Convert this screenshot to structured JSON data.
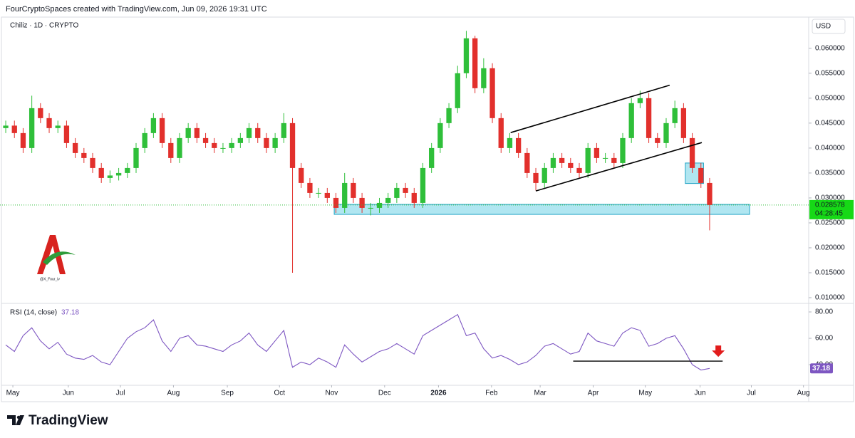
{
  "header": "FourCryptoSpaces created with TradingView.com, Jun 09, 2026 19:31 UTC",
  "footer_brand": "TradingView",
  "watermark": "@X_Four_iv",
  "chart_data": {
    "type": "candlestick",
    "title": "Chiliz · 1D · CRYPTO",
    "currency": "USD",
    "colors": {
      "up": "#2fbf3a",
      "down": "#e2302c"
    },
    "x": [
      0,
      1,
      2,
      3,
      4,
      5,
      6,
      7,
      8,
      9,
      10,
      11,
      12,
      13,
      14,
      15,
      16,
      17,
      18,
      19,
      20,
      21,
      22,
      23,
      24,
      25,
      26,
      27,
      28,
      29,
      30,
      31,
      32,
      33,
      34,
      35,
      36,
      37,
      38,
      39,
      40,
      41,
      42,
      43,
      44,
      45,
      46,
      47,
      48,
      49,
      50,
      51,
      52,
      53,
      54,
      55,
      56,
      57,
      58,
      59,
      60,
      61,
      62,
      63,
      64,
      65,
      66,
      67,
      68,
      69,
      70,
      71,
      72,
      73,
      74,
      75,
      76,
      77,
      78,
      79,
      80,
      81
    ],
    "open": [
      0.044,
      0.0445,
      0.043,
      0.04,
      0.048,
      0.046,
      0.044,
      0.0445,
      0.041,
      0.039,
      0.038,
      0.036,
      0.034,
      0.0345,
      0.035,
      0.036,
      0.04,
      0.043,
      0.046,
      0.041,
      0.038,
      0.042,
      0.044,
      0.042,
      0.041,
      0.04,
      0.04,
      0.041,
      0.042,
      0.044,
      0.042,
      0.04,
      0.042,
      0.045,
      0.036,
      0.033,
      0.031,
      0.031,
      0.03,
      0.028,
      0.033,
      0.03,
      0.028,
      0.028,
      0.029,
      0.03,
      0.032,
      0.031,
      0.029,
      0.036,
      0.04,
      0.045,
      0.048,
      0.055,
      0.062,
      0.052,
      0.056,
      0.046,
      0.04,
      0.042,
      0.039,
      0.035,
      0.033,
      0.036,
      0.038,
      0.037,
      0.036,
      0.035,
      0.04,
      0.038,
      0.038,
      0.037,
      0.042,
      0.049,
      0.05,
      0.042,
      0.041,
      0.045,
      0.048,
      0.042,
      0.036,
      0.033
    ],
    "high": [
      0.0455,
      0.0455,
      0.044,
      0.0505,
      0.049,
      0.047,
      0.0455,
      0.0455,
      0.042,
      0.04,
      0.039,
      0.037,
      0.0355,
      0.036,
      0.037,
      0.041,
      0.044,
      0.047,
      0.047,
      0.042,
      0.043,
      0.045,
      0.045,
      0.043,
      0.042,
      0.041,
      0.042,
      0.043,
      0.045,
      0.045,
      0.043,
      0.043,
      0.047,
      0.046,
      0.037,
      0.034,
      0.032,
      0.032,
      0.031,
      0.035,
      0.034,
      0.031,
      0.029,
      0.03,
      0.031,
      0.033,
      0.033,
      0.032,
      0.037,
      0.041,
      0.046,
      0.049,
      0.0565,
      0.0635,
      0.0625,
      0.058,
      0.057,
      0.047,
      0.043,
      0.043,
      0.04,
      0.036,
      0.037,
      0.039,
      0.039,
      0.038,
      0.037,
      0.041,
      0.041,
      0.039,
      0.039,
      0.043,
      0.05,
      0.0515,
      0.051,
      0.043,
      0.046,
      0.0495,
      0.049,
      0.043,
      0.037,
      0.034
    ],
    "low": [
      0.043,
      0.042,
      0.039,
      0.039,
      0.045,
      0.043,
      0.043,
      0.04,
      0.038,
      0.037,
      0.035,
      0.033,
      0.033,
      0.0335,
      0.034,
      0.035,
      0.039,
      0.042,
      0.04,
      0.037,
      0.037,
      0.041,
      0.041,
      0.04,
      0.039,
      0.039,
      0.039,
      0.04,
      0.041,
      0.041,
      0.039,
      0.039,
      0.041,
      0.015,
      0.032,
      0.03,
      0.03,
      0.029,
      0.027,
      0.027,
      0.029,
      0.027,
      0.0265,
      0.027,
      0.028,
      0.029,
      0.03,
      0.028,
      0.028,
      0.035,
      0.039,
      0.044,
      0.047,
      0.054,
      0.051,
      0.051,
      0.045,
      0.039,
      0.039,
      0.038,
      0.034,
      0.0315,
      0.032,
      0.035,
      0.036,
      0.035,
      0.034,
      0.034,
      0.037,
      0.037,
      0.036,
      0.036,
      0.041,
      0.048,
      0.041,
      0.04,
      0.04,
      0.044,
      0.041,
      0.035,
      0.032,
      0.0235
    ],
    "close": [
      0.0445,
      0.043,
      0.04,
      0.048,
      0.046,
      0.044,
      0.0445,
      0.041,
      0.039,
      0.038,
      0.036,
      0.034,
      0.0345,
      0.035,
      0.036,
      0.04,
      0.043,
      0.046,
      0.041,
      0.038,
      0.042,
      0.044,
      0.042,
      0.041,
      0.04,
      0.04,
      0.041,
      0.042,
      0.044,
      0.042,
      0.04,
      0.042,
      0.045,
      0.036,
      0.033,
      0.031,
      0.031,
      0.03,
      0.028,
      0.033,
      0.03,
      0.028,
      0.028,
      0.029,
      0.03,
      0.032,
      0.031,
      0.029,
      0.036,
      0.04,
      0.045,
      0.048,
      0.055,
      0.062,
      0.052,
      0.056,
      0.046,
      0.04,
      0.042,
      0.039,
      0.035,
      0.033,
      0.036,
      0.038,
      0.037,
      0.036,
      0.035,
      0.04,
      0.038,
      0.038,
      0.037,
      0.042,
      0.049,
      0.05,
      0.042,
      0.041,
      0.045,
      0.048,
      0.042,
      0.036,
      0.033,
      0.028578
    ],
    "countdown": "04:28:45",
    "xlim": [
      -0.66,
      92.4
    ],
    "xticks": [
      {
        "value": 0.82,
        "label": "May"
      },
      {
        "value": 7.2,
        "label": "Jun"
      },
      {
        "value": 13.2,
        "label": "Jul"
      },
      {
        "value": 19.3,
        "label": "Aug"
      },
      {
        "value": 25.5,
        "label": "Sep"
      },
      {
        "value": 31.5,
        "label": "Oct"
      },
      {
        "value": 37.5,
        "label": "Nov"
      },
      {
        "value": 43.6,
        "label": "Dec"
      },
      {
        "value": 49.8,
        "label": "2026"
      },
      {
        "value": 55.9,
        "label": "Feb"
      },
      {
        "value": 61.5,
        "label": "Mar"
      },
      {
        "value": 67.6,
        "label": "Apr"
      },
      {
        "value": 73.6,
        "label": "May"
      },
      {
        "value": 79.9,
        "label": "Jun"
      },
      {
        "value": 85.8,
        "label": "Jul"
      },
      {
        "value": 91.8,
        "label": "Aug"
      }
    ],
    "ylim": [
      0.009,
      0.0654
    ],
    "yticks": [
      {
        "value": 0.01,
        "label": "0.010000"
      },
      {
        "value": 0.015,
        "label": "0.015000"
      },
      {
        "value": 0.02,
        "label": "0.020000"
      },
      {
        "value": 0.025,
        "label": "0.025000"
      },
      {
        "value": 0.03,
        "label": "0.030000"
      },
      {
        "value": 0.035,
        "label": "0.035000"
      },
      {
        "value": 0.04,
        "label": "0.040000"
      },
      {
        "value": 0.045,
        "label": "0.045000"
      },
      {
        "value": 0.05,
        "label": "0.050000"
      },
      {
        "value": 0.055,
        "label": "0.055000"
      },
      {
        "value": 0.06,
        "label": "0.060000"
      }
    ],
    "trend_lines": [
      {
        "x": [
          58.1,
          76.4
        ],
        "y": [
          0.0431,
          0.0526
        ]
      },
      {
        "x": [
          61.0,
          80.1
        ],
        "y": [
          0.0314,
          0.0411
        ]
      }
    ],
    "zones": [
      {
        "x": [
          37.8,
          85.6
        ],
        "y": [
          0.0267,
          0.0287
        ]
      },
      {
        "x": [
          78.2,
          80.3
        ],
        "y": [
          0.0329,
          0.037
        ]
      }
    ],
    "rsi": {
      "name": "RSI (14, close)",
      "color": "#7e57c2",
      "values": [
        55,
        50,
        62,
        68,
        58,
        52,
        57,
        48,
        45,
        44,
        47,
        42,
        40,
        50,
        60,
        65,
        68,
        74,
        58,
        50,
        60,
        62,
        55,
        54,
        52,
        50,
        55,
        58,
        64,
        55,
        50,
        58,
        66,
        38,
        42,
        40,
        45,
        42,
        38,
        55,
        48,
        42,
        46,
        50,
        52,
        56,
        52,
        48,
        62,
        66,
        70,
        74,
        78,
        62,
        64,
        52,
        45,
        47,
        44,
        40,
        42,
        47,
        54,
        56,
        52,
        48,
        50,
        64,
        58,
        56,
        54,
        64,
        68,
        66,
        54,
        56,
        60,
        62,
        52,
        40,
        36,
        37.18
      ],
      "ylim": [
        24.9,
        85.4
      ],
      "yticks": [
        {
          "value": 40,
          "label": "40.00"
        },
        {
          "value": 60,
          "label": "60.00"
        },
        {
          "value": 80,
          "label": "80.00"
        }
      ],
      "support_line": {
        "x": [
          65.3,
          82.5
        ],
        "y": [
          42.7,
          42.7
        ]
      },
      "arrow": {
        "x": 82.0,
        "y": 47
      }
    }
  }
}
